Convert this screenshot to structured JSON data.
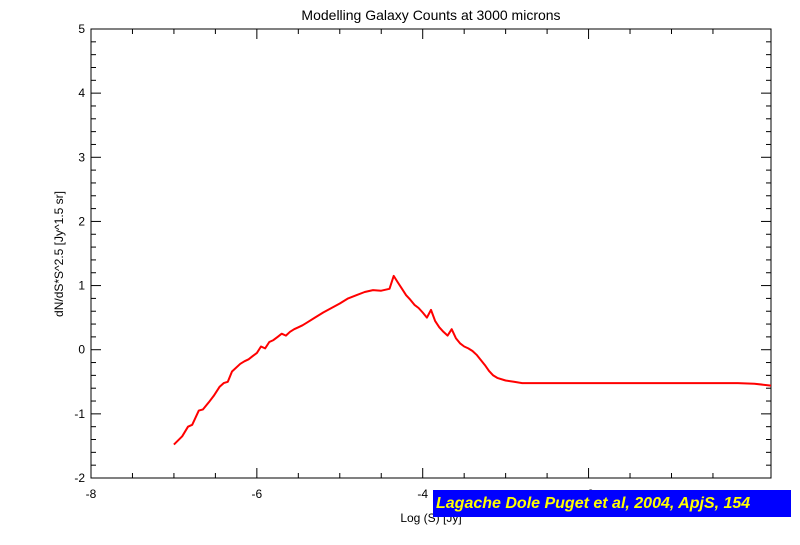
{
  "chart_data": {
    "type": "line",
    "title": "Modelling Galaxy Counts at 3000 microns",
    "xlabel": "Log (S) [Jy]",
    "ylabel": "dN/dS*S^2.5 [Jy^1.5 sr]",
    "xlim": [
      -8,
      0.2
    ],
    "ylim": [
      -2,
      5
    ],
    "x_ticks": [
      -8,
      -6,
      -4,
      -2
    ],
    "y_ticks": [
      -2,
      -1,
      0,
      1,
      2,
      3,
      4,
      5
    ],
    "grid": false,
    "line_color": "#ff0000",
    "series": [
      {
        "x": [
          -7.0,
          -6.9,
          -6.83,
          -6.78,
          -6.7,
          -6.65,
          -6.58,
          -6.52,
          -6.45,
          -6.4,
          -6.35,
          -6.3,
          -6.2,
          -6.15,
          -6.1,
          -6.05,
          -6.0,
          -5.95,
          -5.9,
          -5.85,
          -5.8,
          -5.75,
          -5.7,
          -5.65,
          -5.6,
          -5.55,
          -5.5,
          -5.45,
          -5.4,
          -5.3,
          -5.2,
          -5.1,
          -5.0,
          -4.9,
          -4.8,
          -4.7,
          -4.6,
          -4.5,
          -4.4,
          -4.35,
          -4.3,
          -4.25,
          -4.2,
          -4.15,
          -4.1,
          -4.05,
          -4.0,
          -3.95,
          -3.9,
          -3.85,
          -3.8,
          -3.75,
          -3.7,
          -3.65,
          -3.6,
          -3.55,
          -3.5,
          -3.45,
          -3.4,
          -3.35,
          -3.3,
          -3.25,
          -3.2,
          -3.15,
          -3.1,
          -3.0,
          -2.9,
          -2.8,
          -2.6,
          -2.4,
          -2.2,
          -2.0,
          -1.8,
          -1.6,
          -1.4,
          -1.2,
          -1.0,
          -0.8,
          -0.6,
          -0.4,
          -0.2,
          0.0,
          0.2
        ],
        "y": [
          -1.48,
          -1.35,
          -1.2,
          -1.17,
          -0.95,
          -0.93,
          -0.82,
          -0.72,
          -0.58,
          -0.52,
          -0.5,
          -0.34,
          -0.22,
          -0.18,
          -0.15,
          -0.1,
          -0.05,
          0.05,
          0.02,
          0.12,
          0.15,
          0.2,
          0.25,
          0.22,
          0.28,
          0.32,
          0.35,
          0.38,
          0.42,
          0.5,
          0.58,
          0.65,
          0.72,
          0.8,
          0.85,
          0.9,
          0.93,
          0.92,
          0.95,
          1.15,
          1.05,
          0.95,
          0.85,
          0.78,
          0.7,
          0.65,
          0.58,
          0.5,
          0.62,
          0.45,
          0.35,
          0.28,
          0.22,
          0.32,
          0.18,
          0.1,
          0.05,
          0.02,
          -0.02,
          -0.08,
          -0.16,
          -0.24,
          -0.33,
          -0.4,
          -0.44,
          -0.48,
          -0.5,
          -0.52,
          -0.52,
          -0.52,
          -0.52,
          -0.52,
          -0.52,
          -0.52,
          -0.52,
          -0.52,
          -0.52,
          -0.52,
          -0.52,
          -0.52,
          -0.52,
          -0.53,
          -0.56
        ]
      }
    ]
  },
  "credit": "Lagache Dole Puget et al, 2004, ApjS, 154"
}
